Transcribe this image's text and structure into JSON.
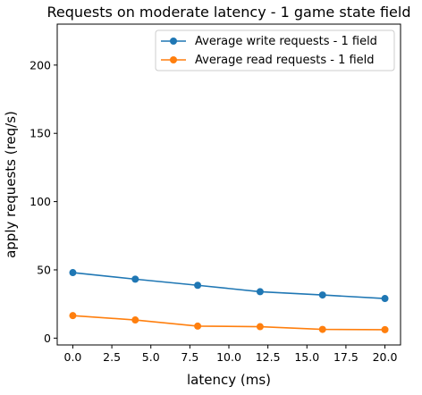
{
  "chart_data": {
    "type": "line",
    "title": "Requests on moderate latency - 1 game state field",
    "xlabel": "latency (ms)",
    "ylabel": "apply requests (req/s)",
    "xlim": [
      -1.0,
      21.0
    ],
    "ylim": [
      -5,
      230
    ],
    "xticks": [
      "0.0",
      "2.5",
      "5.0",
      "7.5",
      "10.0",
      "12.5",
      "15.0",
      "17.5",
      "20.0"
    ],
    "yticks": [
      "0",
      "50",
      "100",
      "150",
      "200"
    ],
    "grid": false,
    "legend_position": "top-right",
    "x": [
      0,
      4,
      8,
      12,
      16,
      20
    ],
    "series": [
      {
        "name": "Average write requests - 1 field",
        "color": "#1f77b4",
        "values": [
          48,
          43.2,
          38.7,
          34,
          31.6,
          29
        ]
      },
      {
        "name": "Average read requests - 1 field",
        "color": "#ff7f0e",
        "values": [
          16.5,
          13.3,
          8.8,
          8.4,
          6.4,
          6.2
        ]
      }
    ]
  }
}
